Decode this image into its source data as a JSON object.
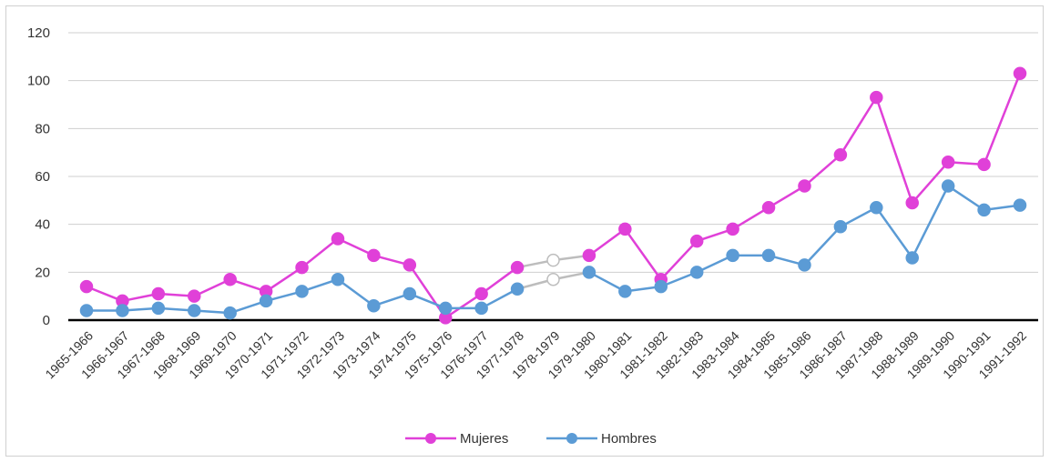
{
  "chart_data": {
    "type": "line",
    "title": "",
    "xlabel": "",
    "ylabel": "",
    "ylim": [
      0,
      120
    ],
    "yticks": [
      0,
      20,
      40,
      60,
      80,
      100,
      120
    ],
    "grid": true,
    "legend_position": "bottom-center",
    "categories": [
      "1965-1966",
      "1966-1967",
      "1967-1968",
      "1968-1969",
      "1969-1970",
      "1970-1971",
      "1971-1972",
      "1972-1973",
      "1973-1974",
      "1974-1975",
      "1975-1976",
      "1976-1977",
      "1977-1978",
      "1978-1979",
      "1979-1980",
      "1980-1981",
      "1981-1982",
      "1982-1983",
      "1983-1984",
      "1984-1985",
      "1985-1986",
      "1986-1987",
      "1987-1988",
      "1988-1989",
      "1989-1990",
      "1990-1991",
      "1991-1992"
    ],
    "series": [
      {
        "name": "Mujeres",
        "color": "#e040d8",
        "values": [
          14,
          8,
          11,
          10,
          17,
          12,
          22,
          34,
          27,
          23,
          1,
          11,
          22,
          25,
          27,
          38,
          17,
          33,
          38,
          47,
          56,
          69,
          93,
          49,
          66,
          65,
          103
        ],
        "estimated_points": [
          13
        ]
      },
      {
        "name": "Hombres",
        "color": "#5b9bd5",
        "values": [
          4,
          4,
          5,
          4,
          3,
          8,
          12,
          17,
          6,
          11,
          5,
          5,
          13,
          17,
          20,
          12,
          14,
          20,
          27,
          27,
          23,
          39,
          47,
          26,
          56,
          46,
          48
        ],
        "estimated_points": [
          13
        ]
      }
    ]
  }
}
